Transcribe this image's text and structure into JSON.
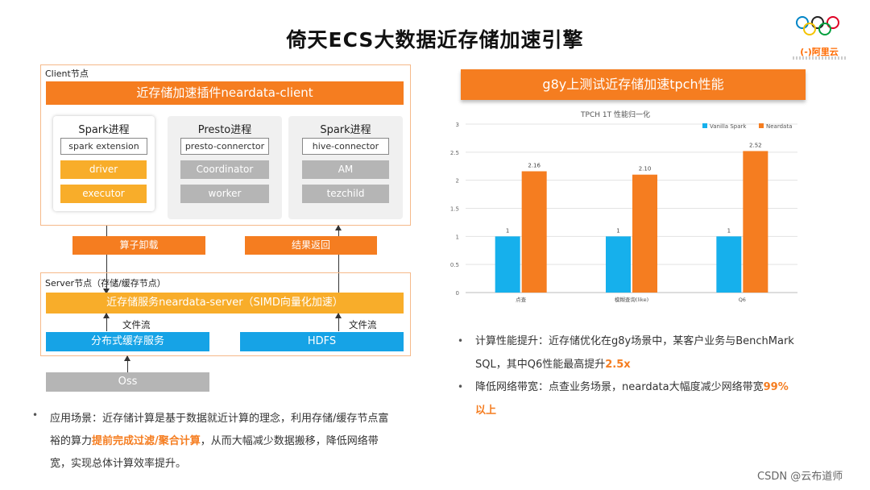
{
  "slide": {
    "title": "倚天ECS大数据近存储加速引擎",
    "watermark": "CSDN @云布道师"
  },
  "logo": {
    "brand_text": "(-)阿里云",
    "icon": "olympic-rings-icon"
  },
  "diagram": {
    "client_label": "Client节点",
    "plugin_bar": "近存储加速插件neardata-client",
    "panels": [
      {
        "title": "Spark进程",
        "connector": "spark extension",
        "items": [
          "driver",
          "executor"
        ]
      },
      {
        "title": "Presto进程",
        "connector": "presto-connerctor",
        "items": [
          "Coordinator",
          "worker"
        ]
      },
      {
        "title": "Spark进程",
        "connector": "hive-connector",
        "items": [
          "AM",
          "tezchild"
        ]
      }
    ],
    "offload_label": "算子卸载",
    "return_label": "结果返回",
    "server_label": "Server节点（存储/缓存节点）",
    "server_bar": "近存储服务neardata-server（SIMD向量化加速）",
    "file_stream_left": "文件流",
    "file_stream_right": "文件流",
    "cache_service": "分布式缓存服务",
    "hdfs": "HDFS",
    "oss": "Oss"
  },
  "left_bullet": {
    "prefix": "应用场景：近存储计算是基于数据就近计算的理念，利用存储/缓存节点富裕的算力",
    "highlight": "提前完成过滤/聚合计算",
    "suffix": "，从而大幅减少数据搬移，降低网络带宽，实现总体计算效率提升。"
  },
  "right_header": "g8y上测试近存储加速tpch性能",
  "chart_data": {
    "type": "bar",
    "title": "TPCH 1T 性能归一化",
    "categories": [
      "点查",
      "模糊查询(like)",
      "Q6"
    ],
    "series": [
      {
        "name": "Vanilla Spark",
        "values": [
          1,
          1,
          1
        ],
        "labels": [
          "1",
          "1",
          "1"
        ]
      },
      {
        "name": "Neardata",
        "values": [
          2.16,
          2.1,
          2.52
        ],
        "labels": [
          "2.16",
          "2.10",
          "2.52"
        ]
      }
    ],
    "ylim": [
      0,
      3
    ],
    "yticks": [
      "0",
      "0.5",
      "1",
      "1.5",
      "2",
      "2.5",
      "3"
    ],
    "colors": {
      "Vanilla Spark": "#16b0ec",
      "Neardata": "#f57d20"
    },
    "legend": "top-right",
    "grid": true
  },
  "right_bullets": [
    {
      "prefix": "计算性能提升：近存储优化在g8y场景中，某客户业务与BenchMark SQL，其中Q6性能最高提升",
      "highlight": "2.5x",
      "suffix": ""
    },
    {
      "prefix": "降低网络带宽：点查业务场景，neardata大幅度减少网络带宽",
      "highlight": "99%以上",
      "suffix": ""
    }
  ]
}
